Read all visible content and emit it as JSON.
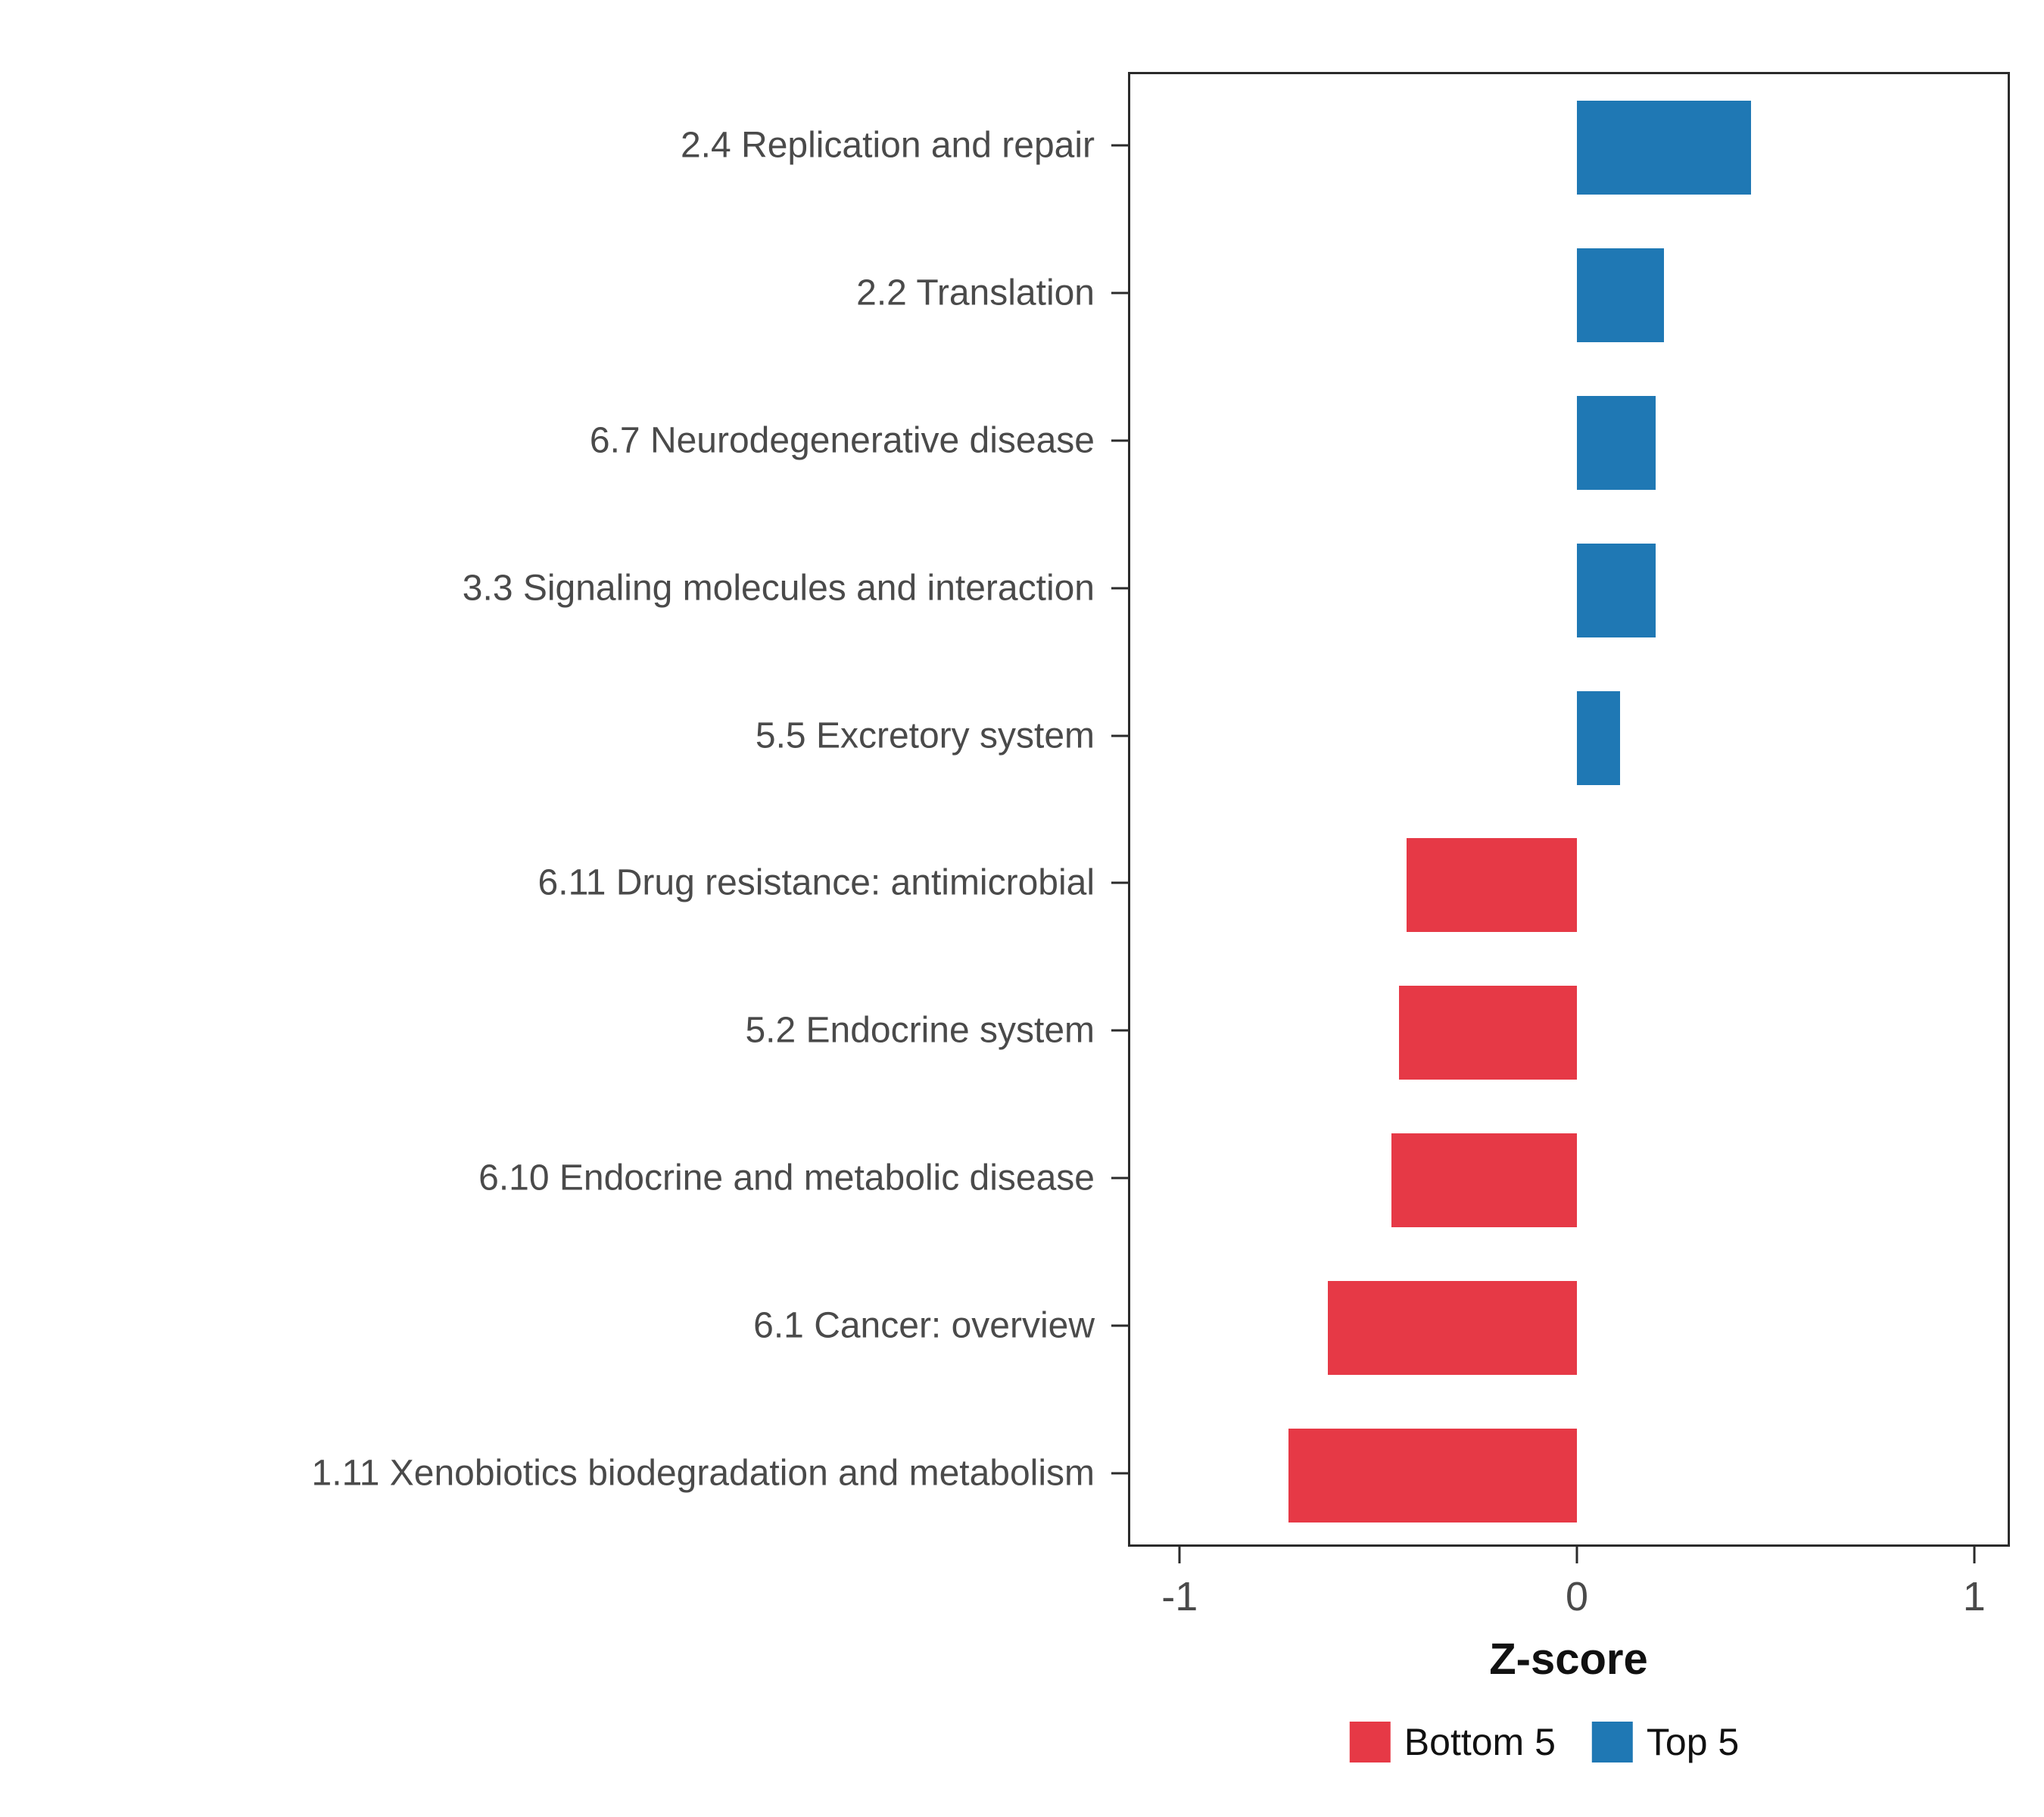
{
  "chart_data": {
    "type": "bar",
    "orientation": "horizontal",
    "title": "",
    "xlabel": "Z-score",
    "ylabel": "",
    "xlim": [
      -1.13,
      1.09
    ],
    "x_ticks": [
      -1,
      0,
      1
    ],
    "grid": false,
    "legend_position": "bottom",
    "group_colors": {
      "Bottom 5": "#E63946",
      "Top 5": "#1F78B4"
    },
    "points": [
      {
        "category": "2.4 Replication and repair",
        "value": 0.44,
        "group": "Top 5"
      },
      {
        "category": "2.2 Translation",
        "value": 0.22,
        "group": "Top 5"
      },
      {
        "category": "6.7 Neurodegenerative disease",
        "value": 0.2,
        "group": "Top 5"
      },
      {
        "category": "3.3 Signaling molecules and interaction",
        "value": 0.2,
        "group": "Top 5"
      },
      {
        "category": "5.5 Excretory system",
        "value": 0.11,
        "group": "Top 5"
      },
      {
        "category": "6.11 Drug resistance: antimicrobial",
        "value": -0.43,
        "group": "Bottom 5"
      },
      {
        "category": "5.2 Endocrine system",
        "value": -0.45,
        "group": "Bottom 5"
      },
      {
        "category": "6.10 Endocrine and metabolic disease",
        "value": -0.47,
        "group": "Bottom 5"
      },
      {
        "category": "6.1 Cancer: overview",
        "value": -0.63,
        "group": "Bottom 5"
      },
      {
        "category": "1.11 Xenobiotics biodegradation and metabolism",
        "value": -0.73,
        "group": "Bottom 5"
      }
    ]
  },
  "legend": {
    "items": [
      {
        "label": "Bottom 5",
        "color": "#E63946"
      },
      {
        "label": "Top 5",
        "color": "#1F78B4"
      }
    ]
  }
}
